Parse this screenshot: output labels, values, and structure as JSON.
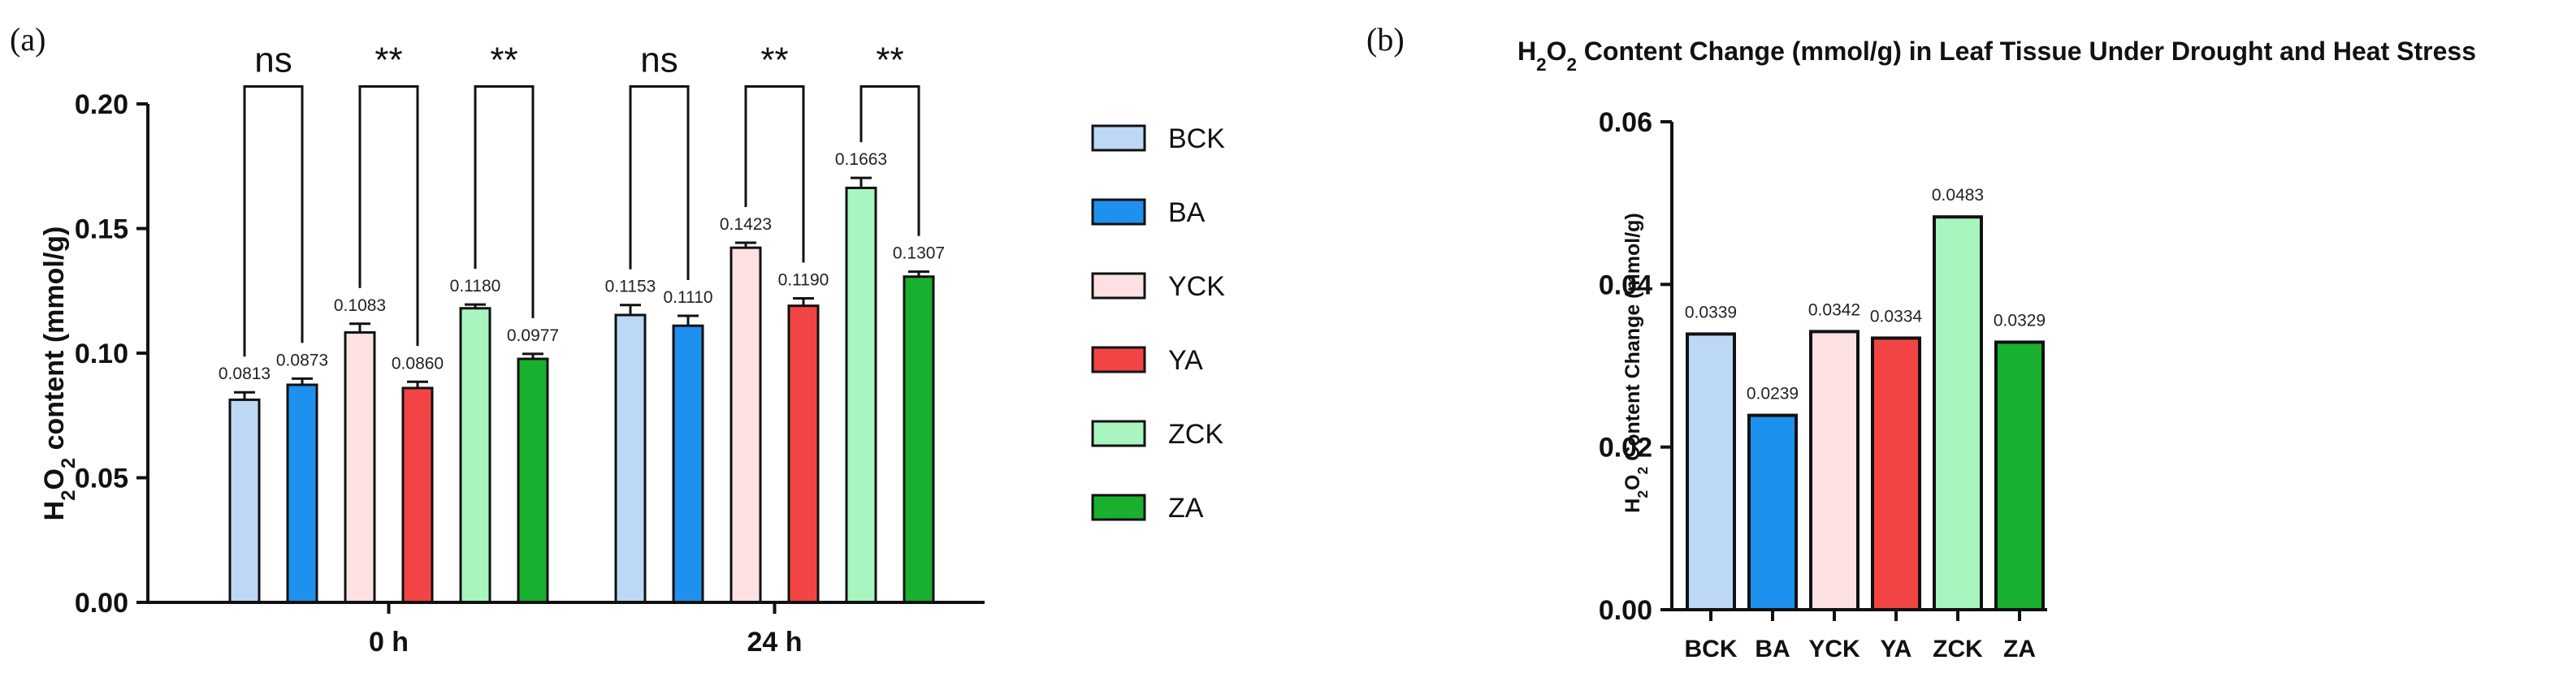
{
  "panel_labels": {
    "a": "(a)",
    "b": "(b)"
  },
  "legend": [
    {
      "name": "BCK",
      "color": "#bcd8f4"
    },
    {
      "name": "BA",
      "color": "#1e90ee"
    },
    {
      "name": "YCK",
      "color": "#fde1e2"
    },
    {
      "name": "YA",
      "color": "#f24444"
    },
    {
      "name": "ZCK",
      "color": "#a8f5c0"
    },
    {
      "name": "ZA",
      "color": "#18b02e"
    }
  ],
  "chart_data": [
    {
      "type": "bar",
      "title": "",
      "ylabel_parts": [
        "H",
        "2",
        "O",
        "2",
        " content (mmol/g)"
      ],
      "ylim": [
        0,
        0.2
      ],
      "yticks": [
        "0.00",
        "0.05",
        "0.10",
        "0.15",
        "0.20"
      ],
      "categories": [
        "0 h",
        "24 h"
      ],
      "series": [
        {
          "name": "BCK",
          "values": [
            0.0813,
            0.1153
          ],
          "labels": [
            "0.0813",
            "0.1153"
          ],
          "errors": [
            0.003,
            0.004
          ]
        },
        {
          "name": "BA",
          "values": [
            0.0873,
            0.111
          ],
          "labels": [
            "0.0873",
            "0.1110"
          ],
          "errors": [
            0.0025,
            0.004
          ]
        },
        {
          "name": "YCK",
          "values": [
            0.1083,
            0.1423
          ],
          "labels": [
            "0.1083",
            "0.1423"
          ],
          "errors": [
            0.0035,
            0.002
          ]
        },
        {
          "name": "YA",
          "values": [
            0.086,
            0.119
          ],
          "labels": [
            "0.0860",
            "0.1190"
          ],
          "errors": [
            0.0025,
            0.003
          ]
        },
        {
          "name": "ZCK",
          "values": [
            0.118,
            0.1663
          ],
          "labels": [
            "0.1180",
            "0.1663"
          ],
          "errors": [
            0.0015,
            0.004
          ]
        },
        {
          "name": "ZA",
          "values": [
            0.0977,
            0.1307
          ],
          "labels": [
            "0.0977",
            "0.1307"
          ],
          "errors": [
            0.002,
            0.002
          ]
        }
      ],
      "significance": [
        {
          "group": 0,
          "pair": [
            0,
            1
          ],
          "label": "ns",
          "top": 0.207
        },
        {
          "group": 0,
          "pair": [
            2,
            3
          ],
          "label": "**",
          "top": 0.207
        },
        {
          "group": 0,
          "pair": [
            4,
            5
          ],
          "label": "**",
          "top": 0.207
        },
        {
          "group": 1,
          "pair": [
            0,
            1
          ],
          "label": "ns",
          "top": 0.207
        },
        {
          "group": 1,
          "pair": [
            2,
            3
          ],
          "label": "**",
          "top": 0.207
        },
        {
          "group": 1,
          "pair": [
            4,
            5
          ],
          "label": "**",
          "top": 0.207
        }
      ]
    },
    {
      "type": "bar",
      "title_parts": [
        "H",
        "2",
        "O",
        "2",
        " Content Change (mmol/g) in Leaf Tissue Under Drought and Heat Stress"
      ],
      "ylabel_parts": [
        "H",
        "2",
        "O",
        "2",
        " Content Change (mmol/g)"
      ],
      "ylim": [
        0,
        0.06
      ],
      "yticks": [
        "0.00",
        "0.02",
        "0.04",
        "0.06"
      ],
      "categories": [
        "BCK",
        "BA",
        "YCK",
        "YA",
        "ZCK",
        "ZA"
      ],
      "values": [
        0.0339,
        0.0239,
        0.0342,
        0.0334,
        0.0483,
        0.0329
      ],
      "labels": [
        "0.0339",
        "0.0239",
        "0.0342",
        "0.0334",
        "0.0483",
        "0.0329"
      ]
    }
  ]
}
